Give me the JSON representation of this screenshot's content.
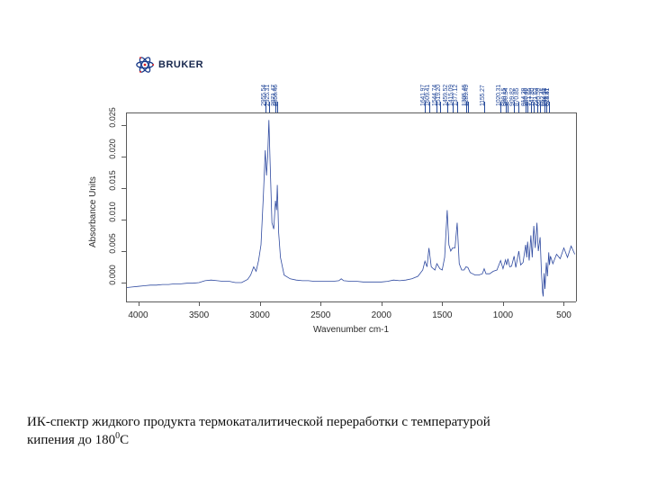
{
  "logo": {
    "brand": "BRUKER"
  },
  "chart": {
    "type": "line",
    "xlabel": "Wavenumber cm-1",
    "ylabel": "Absorbance Units",
    "xlim": [
      4100,
      400
    ],
    "ylim": [
      -0.003,
      0.027
    ],
    "xticks": [
      4000,
      3500,
      3000,
      2500,
      2000,
      1500,
      1000,
      500
    ],
    "yticks": [
      0.0,
      0.005,
      0.01,
      0.015,
      0.02,
      0.025
    ],
    "ytick_labels": [
      "0.000",
      "0.005",
      "0.010",
      "0.015",
      "0.020",
      "0.025"
    ],
    "line_color": "#2f4aa0",
    "line_width": 0.8,
    "axis_color": "#5a5a5a",
    "background_color": "#ffffff",
    "label_fontsize": 10,
    "tick_fontsize": 10,
    "peak_label_color": "#264a9a",
    "peak_label_fontsize": 7,
    "peak_labels_group1": [
      "2955.54",
      "2925.31",
      "2871.47",
      "2856.46"
    ],
    "peak_labels_group2": [
      "1641.97",
      "1609.41",
      "1544.74",
      "1519.20",
      "1459.52",
      "1415.09",
      "1377.12",
      "1305.46",
      "1289.49",
      "1155.27",
      "1020.31",
      "980.15",
      "960.54",
      "909.82",
      "870.85",
      "814.28",
      "798.46",
      "771.65",
      "747.80",
      "721.63",
      "695.59",
      "662.45",
      "644.51",
      "624.41",
      "618.87"
    ],
    "series": [
      [
        4100,
        -0.0008
      ],
      [
        4050,
        -0.0007
      ],
      [
        4000,
        -0.0006
      ],
      [
        3950,
        -0.0005
      ],
      [
        3900,
        -0.0004
      ],
      [
        3850,
        -0.0004
      ],
      [
        3800,
        -0.0003
      ],
      [
        3750,
        -0.0003
      ],
      [
        3700,
        -0.0002
      ],
      [
        3650,
        -0.0002
      ],
      [
        3600,
        -0.0001
      ],
      [
        3550,
        -0.0001
      ],
      [
        3500,
        0.0
      ],
      [
        3450,
        0.0003
      ],
      [
        3400,
        0.0004
      ],
      [
        3350,
        0.0003
      ],
      [
        3300,
        0.0002
      ],
      [
        3250,
        0.0002
      ],
      [
        3200,
        0.0
      ],
      [
        3150,
        0.0
      ],
      [
        3100,
        0.0005
      ],
      [
        3075,
        0.0012
      ],
      [
        3050,
        0.0025
      ],
      [
        3030,
        0.0018
      ],
      [
        3010,
        0.0035
      ],
      [
        2990,
        0.006
      ],
      [
        2970,
        0.014
      ],
      [
        2955,
        0.021
      ],
      [
        2945,
        0.017
      ],
      [
        2935,
        0.02
      ],
      [
        2925,
        0.0258
      ],
      [
        2915,
        0.019
      ],
      [
        2900,
        0.0095
      ],
      [
        2885,
        0.0085
      ],
      [
        2871,
        0.013
      ],
      [
        2862,
        0.0115
      ],
      [
        2856,
        0.0155
      ],
      [
        2845,
        0.008
      ],
      [
        2830,
        0.004
      ],
      [
        2800,
        0.0012
      ],
      [
        2750,
        0.0006
      ],
      [
        2700,
        0.0004
      ],
      [
        2650,
        0.0003
      ],
      [
        2600,
        0.0003
      ],
      [
        2550,
        0.0002
      ],
      [
        2500,
        0.0002
      ],
      [
        2450,
        0.0002
      ],
      [
        2400,
        0.0002
      ],
      [
        2350,
        0.0003
      ],
      [
        2330,
        0.0006
      ],
      [
        2310,
        0.0003
      ],
      [
        2250,
        0.0002
      ],
      [
        2200,
        0.0002
      ],
      [
        2150,
        0.0001
      ],
      [
        2100,
        0.0001
      ],
      [
        2050,
        0.0001
      ],
      [
        2000,
        0.0001
      ],
      [
        1950,
        0.0002
      ],
      [
        1900,
        0.0004
      ],
      [
        1850,
        0.0003
      ],
      [
        1800,
        0.0004
      ],
      [
        1750,
        0.0006
      ],
      [
        1700,
        0.001
      ],
      [
        1660,
        0.002
      ],
      [
        1642,
        0.0034
      ],
      [
        1625,
        0.0025
      ],
      [
        1609,
        0.0055
      ],
      [
        1590,
        0.0025
      ],
      [
        1560,
        0.002
      ],
      [
        1544,
        0.003
      ],
      [
        1519,
        0.0022
      ],
      [
        1500,
        0.002
      ],
      [
        1480,
        0.004
      ],
      [
        1459,
        0.0115
      ],
      [
        1445,
        0.006
      ],
      [
        1430,
        0.005
      ],
      [
        1415,
        0.0055
      ],
      [
        1395,
        0.0055
      ],
      [
        1377,
        0.0095
      ],
      [
        1360,
        0.003
      ],
      [
        1340,
        0.002
      ],
      [
        1320,
        0.002
      ],
      [
        1305,
        0.0025
      ],
      [
        1289,
        0.0024
      ],
      [
        1270,
        0.0016
      ],
      [
        1250,
        0.0014
      ],
      [
        1230,
        0.0012
      ],
      [
        1200,
        0.0012
      ],
      [
        1170,
        0.0014
      ],
      [
        1155,
        0.0022
      ],
      [
        1140,
        0.0014
      ],
      [
        1110,
        0.0014
      ],
      [
        1080,
        0.0018
      ],
      [
        1050,
        0.002
      ],
      [
        1020,
        0.0035
      ],
      [
        1000,
        0.0022
      ],
      [
        980,
        0.0036
      ],
      [
        970,
        0.0028
      ],
      [
        960,
        0.0038
      ],
      [
        945,
        0.0025
      ],
      [
        930,
        0.0026
      ],
      [
        909,
        0.0042
      ],
      [
        895,
        0.0024
      ],
      [
        870,
        0.005
      ],
      [
        855,
        0.0028
      ],
      [
        835,
        0.0032
      ],
      [
        814,
        0.006
      ],
      [
        805,
        0.004
      ],
      [
        798,
        0.0065
      ],
      [
        785,
        0.0035
      ],
      [
        771,
        0.0075
      ],
      [
        760,
        0.004
      ],
      [
        747,
        0.009
      ],
      [
        735,
        0.0055
      ],
      [
        721,
        0.0095
      ],
      [
        710,
        0.005
      ],
      [
        695,
        0.0072
      ],
      [
        685,
        0.002
      ],
      [
        675,
        -0.0015
      ],
      [
        670,
        -0.0022
      ],
      [
        662,
        0.0015
      ],
      [
        655,
        -0.001
      ],
      [
        644,
        0.0032
      ],
      [
        635,
        0.001
      ],
      [
        624,
        0.0048
      ],
      [
        618,
        0.0028
      ],
      [
        610,
        0.0042
      ],
      [
        590,
        0.003
      ],
      [
        560,
        0.0045
      ],
      [
        530,
        0.0038
      ],
      [
        500,
        0.0055
      ],
      [
        470,
        0.004
      ],
      [
        440,
        0.0058
      ],
      [
        410,
        0.0045
      ]
    ]
  },
  "caption": {
    "line1": "ИК-спектр жидкого продукта термокаталитической переработки с температурой",
    "line2_pre": "кипения до 180",
    "line2_sup": "0",
    "line2_post": "С"
  }
}
